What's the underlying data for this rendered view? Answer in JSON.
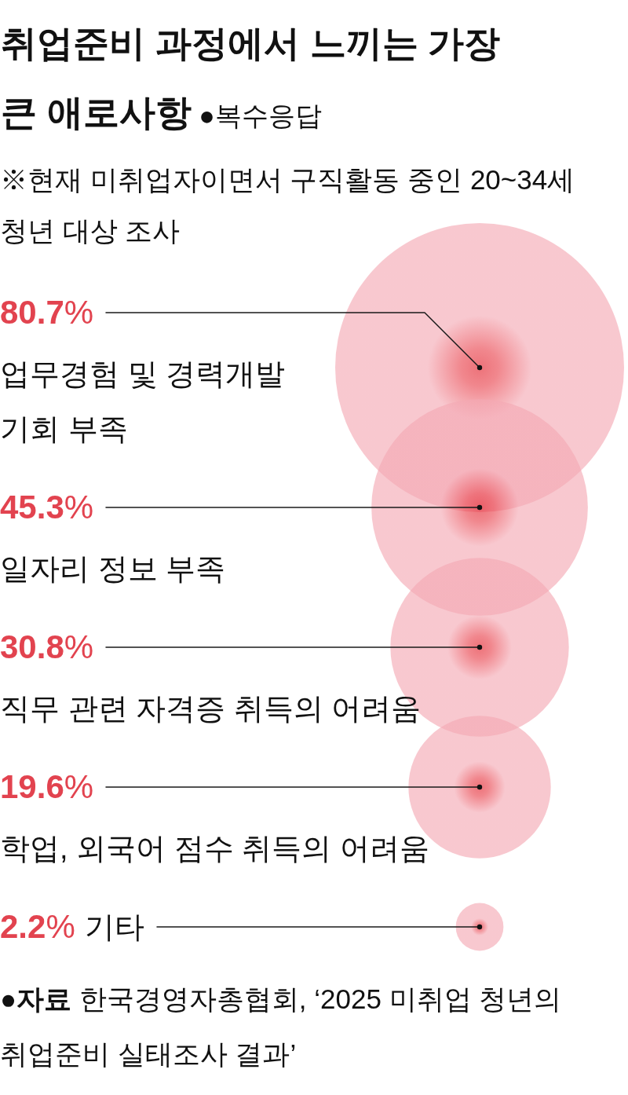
{
  "chart_data": {
    "type": "other",
    "title": "**취업준비 과정에서 느끼는 가장 큰 애로사항** ●복수응답",
    "subtitle": "※현재 미취업자이면서 구직활동 중인 20~34세 청년 대상 조사",
    "annotations": [
      "**●자료** 한국경영자총협회, ‘2025 미취업 청년의 취업준비 실태조사 결과’"
    ],
    "categories": [
      "업무경험 및 경력개발 기회 부족",
      "일자리 정보 부족",
      "직무 관련 자격증 취득의 어려움",
      "학업, 외국어 점수 취득의 어려움",
      "기타"
    ],
    "values": [
      80.7,
      45.3,
      30.8,
      19.6,
      2.2
    ],
    "value_labels": [
      "80.7%",
      "45.3%",
      "30.8%",
      "19.6%",
      "2.2%"
    ],
    "color": "#f4a9b4"
  }
}
